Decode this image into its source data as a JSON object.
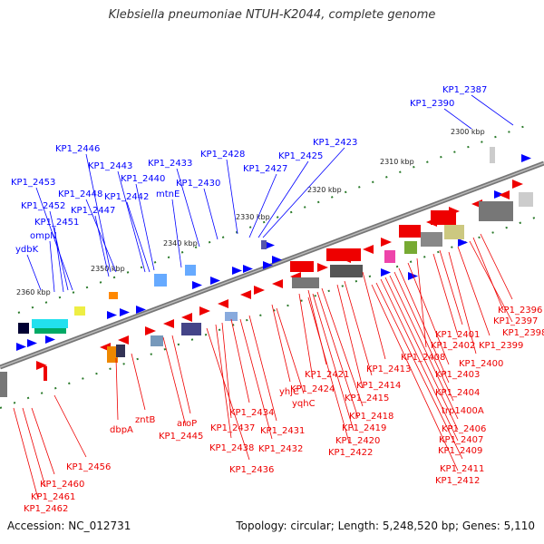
{
  "title": "Klebsiella pneumoniae NTUH-K2044, complete genome",
  "footer": {
    "accession": "Accession: NC_012731",
    "summary": "Topology: circular; Length: 5,248,520 bp; Genes: 5,110"
  },
  "colors": {
    "top_strand": "#0000ff",
    "bottom_strand": "#ee0000",
    "backbone": "#777777",
    "scale_tick": "#2a7a2a"
  },
  "scale": [
    "2300 kbp",
    "2310 kbp",
    "2320 kbp",
    "2330 kbp",
    "2340 kbp",
    "2350 kbp",
    "2360 kbp"
  ],
  "top_labels": [
    "KP1_2387",
    "KP1_2390",
    "KP1_2423",
    "KP1_2425",
    "KP1_2427",
    "KP1_2428",
    "KP1_2430",
    "KP1_2433",
    "mtnE",
    "KP1_2446",
    "KP1_2443",
    "KP1_2440",
    "KP1_2442",
    "KP1_2448",
    "KP1_2447",
    "KP1_2453",
    "KP1_2452",
    "KP1_2451",
    "ompN",
    "ydbK"
  ],
  "bottom_labels": [
    "KP1_2396",
    "KP1_2397",
    "KP1_2398",
    "KP1_2399",
    "KP1_2401",
    "KP1_2402",
    "KP1_2400",
    "KP1_2408",
    "KP1_2403",
    "KP1_2413",
    "KP1_2421",
    "KP1_2424",
    "KP1_2414",
    "KP1_2415",
    "KP1_2404",
    "trp1400A",
    "KP1_2418",
    "KP1_2419",
    "KP1_2406",
    "KP1_2420",
    "KP1_2407",
    "KP1_2422",
    "KP1_2409",
    "yhjC",
    "yqhC",
    "KP1_2431",
    "KP1_2432",
    "KP1_2434",
    "KP1_2437",
    "KP1_2438",
    "KP1_2436",
    "aroP",
    "KP1_2445",
    "zntB",
    "dbpA",
    "KP1_2456",
    "KP1_2460",
    "KP1_2461",
    "KP1_2462",
    "KP1_2411",
    "KP1_2412"
  ]
}
